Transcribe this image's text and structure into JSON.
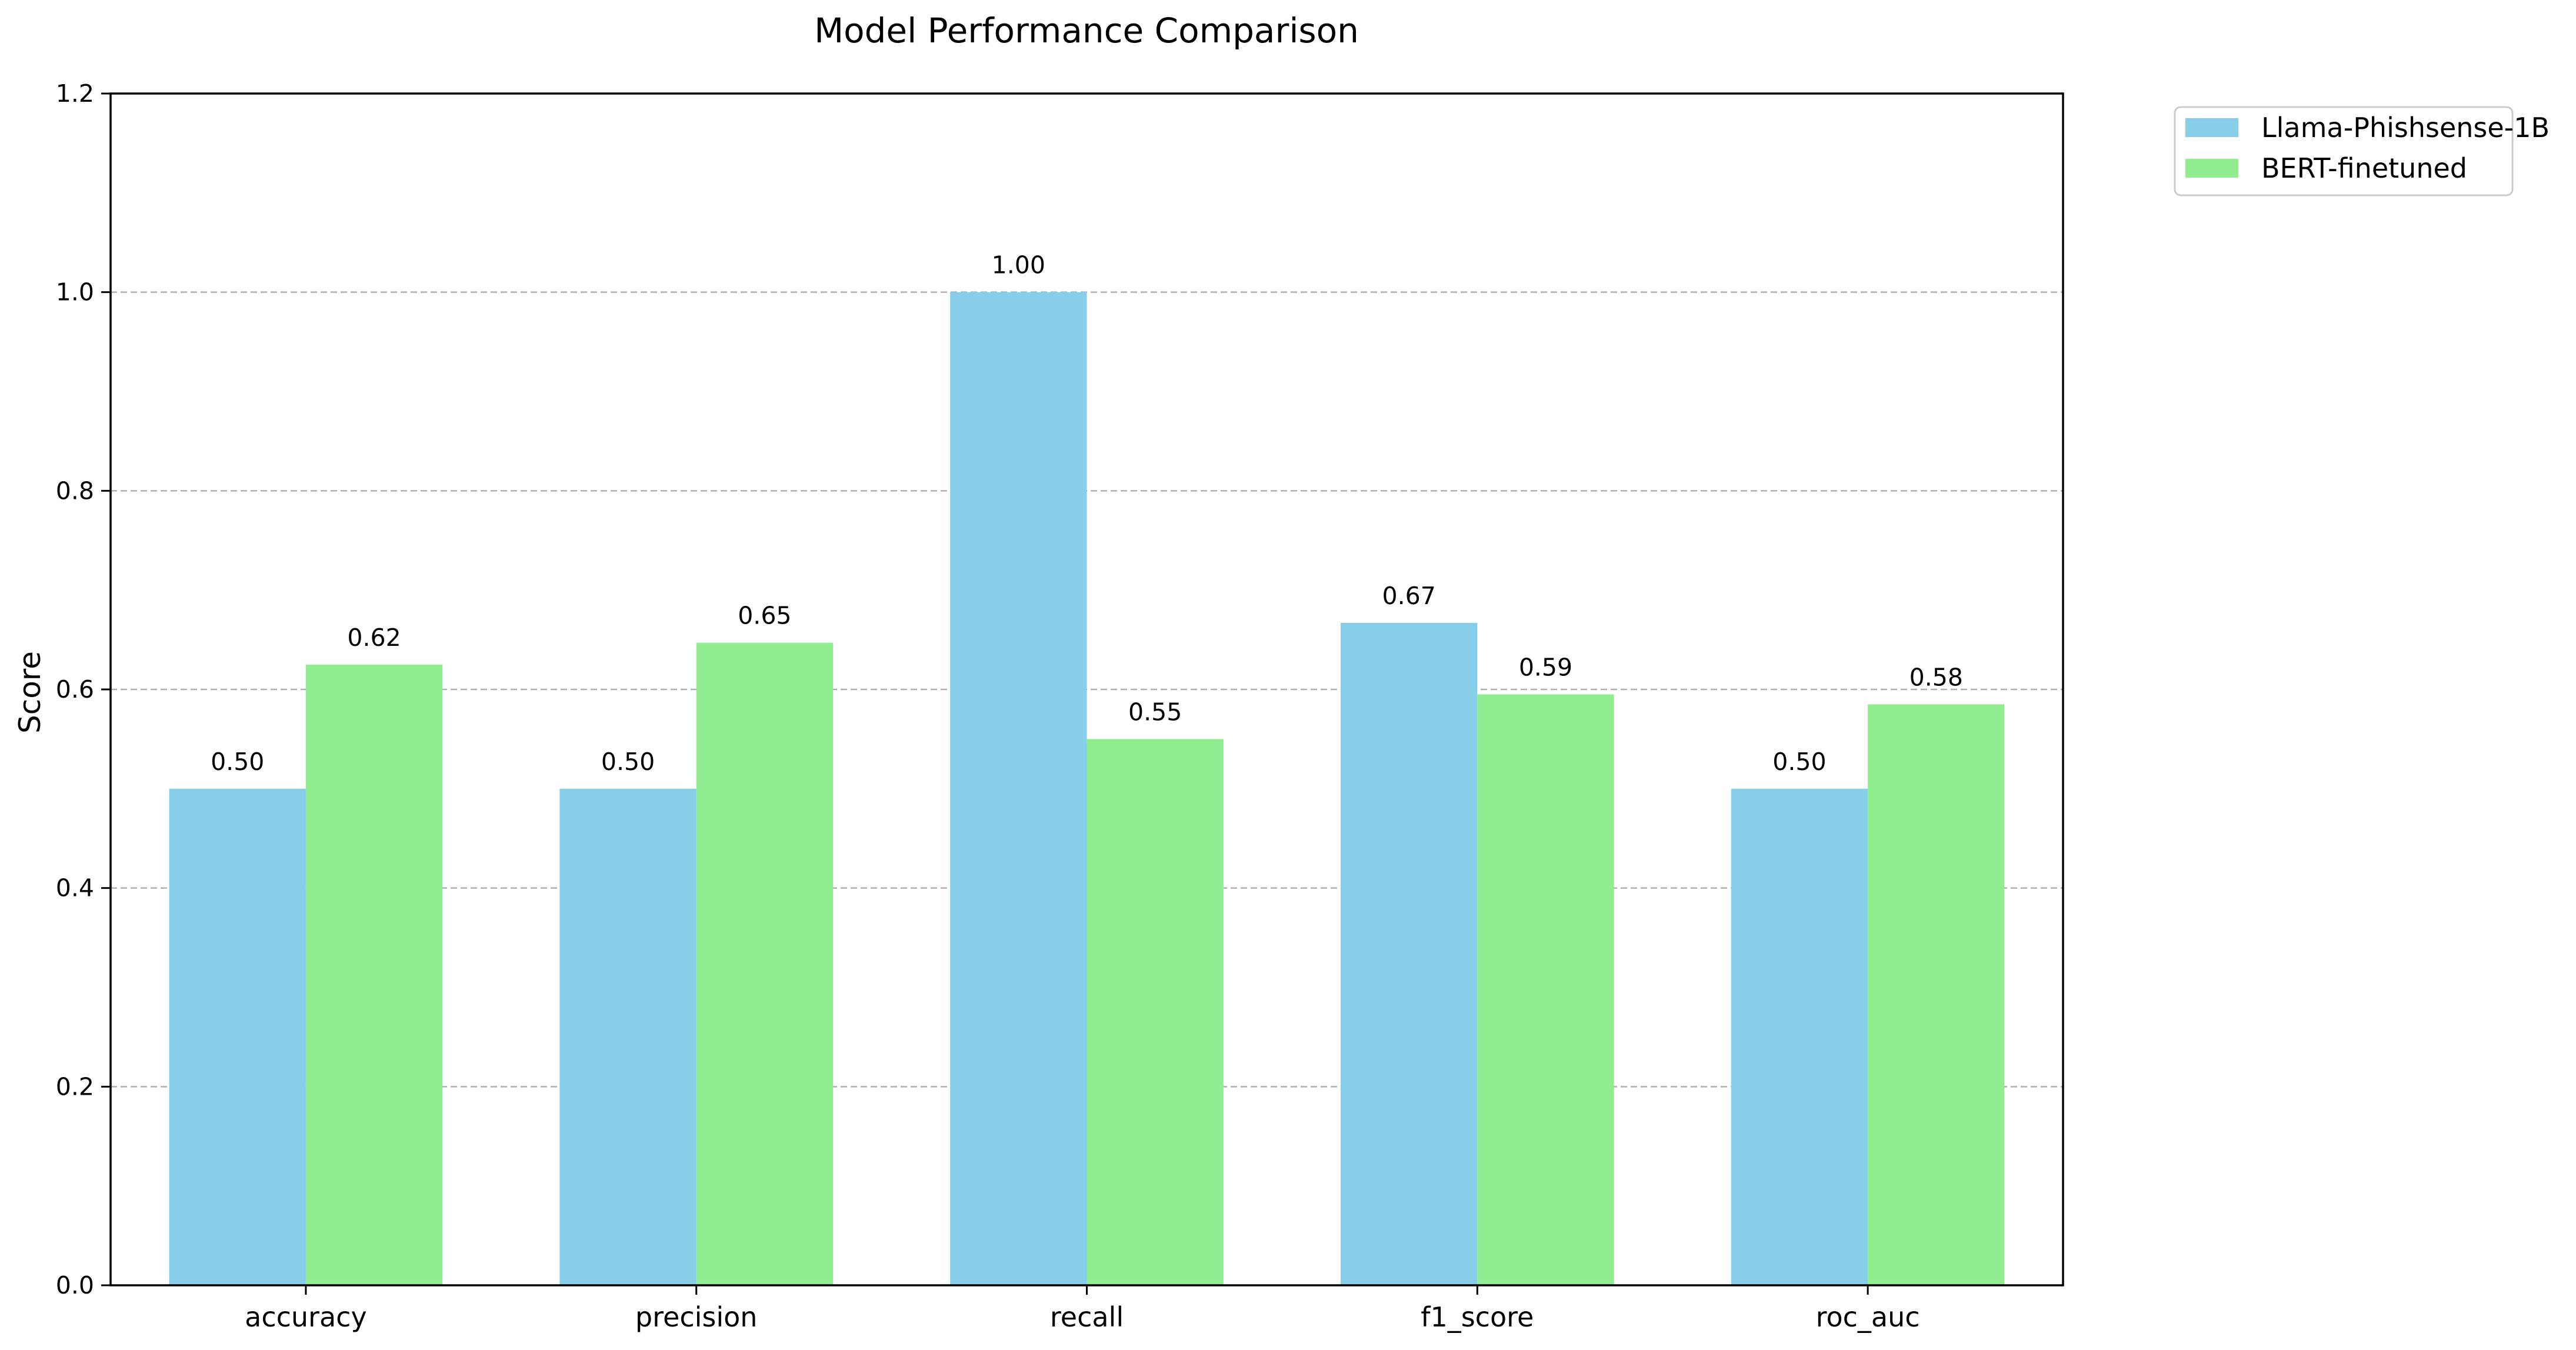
{
  "chart_data": {
    "type": "bar",
    "title": "Model Performance Comparison",
    "xlabel": "",
    "ylabel": "Score",
    "categories": [
      "accuracy",
      "precision",
      "recall",
      "f1_score",
      "roc_auc"
    ],
    "series": [
      {
        "name": "Llama-Phishsense-1B",
        "color": "#87CEEB",
        "values": [
          0.5,
          0.5,
          1.0,
          0.667,
          0.5
        ],
        "labels": [
          "0.50",
          "0.50",
          "1.00",
          "0.67",
          "0.50"
        ]
      },
      {
        "name": "BERT-finetuned",
        "color": "#90EE90",
        "values": [
          0.625,
          0.647,
          0.55,
          0.595,
          0.585
        ],
        "labels": [
          "0.62",
          "0.65",
          "0.55",
          "0.59",
          "0.58"
        ]
      }
    ],
    "ylim": [
      0,
      1.2
    ],
    "yticks": [
      "0.0",
      "0.2",
      "0.4",
      "0.6",
      "0.8",
      "1.0",
      "1.2"
    ],
    "ytick_values": [
      0,
      0.2,
      0.4,
      0.6,
      0.8,
      1.0,
      1.2
    ],
    "grid": "y-dashed",
    "legend_position": "outside-top-right"
  }
}
